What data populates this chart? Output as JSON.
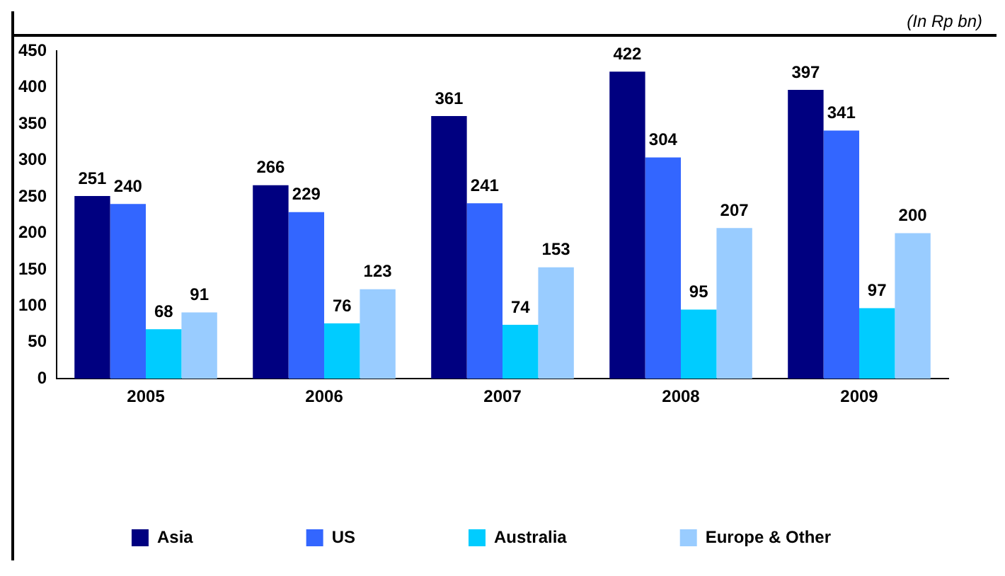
{
  "chart_data": {
    "type": "bar",
    "annotations": [
      "(In Rp bn)"
    ],
    "categories": [
      "2005",
      "2006",
      "2007",
      "2008",
      "2009"
    ],
    "series": [
      {
        "name": "Asia",
        "color": "#000080",
        "values": [
          251,
          266,
          361,
          422,
          397
        ]
      },
      {
        "name": "US",
        "color": "#3366ff",
        "values": [
          240,
          229,
          241,
          304,
          341
        ]
      },
      {
        "name": "Australia",
        "color": "#00ccff",
        "values": [
          68,
          76,
          74,
          95,
          97
        ]
      },
      {
        "name": "Europe & Other",
        "color": "#99ccff",
        "values": [
          91,
          123,
          153,
          207,
          200
        ]
      }
    ],
    "ylim": [
      0,
      450
    ],
    "yticks": [
      0,
      50,
      100,
      150,
      200,
      250,
      300,
      350,
      400,
      450
    ],
    "data_labels": true,
    "legend": "bottom",
    "grid": false
  }
}
